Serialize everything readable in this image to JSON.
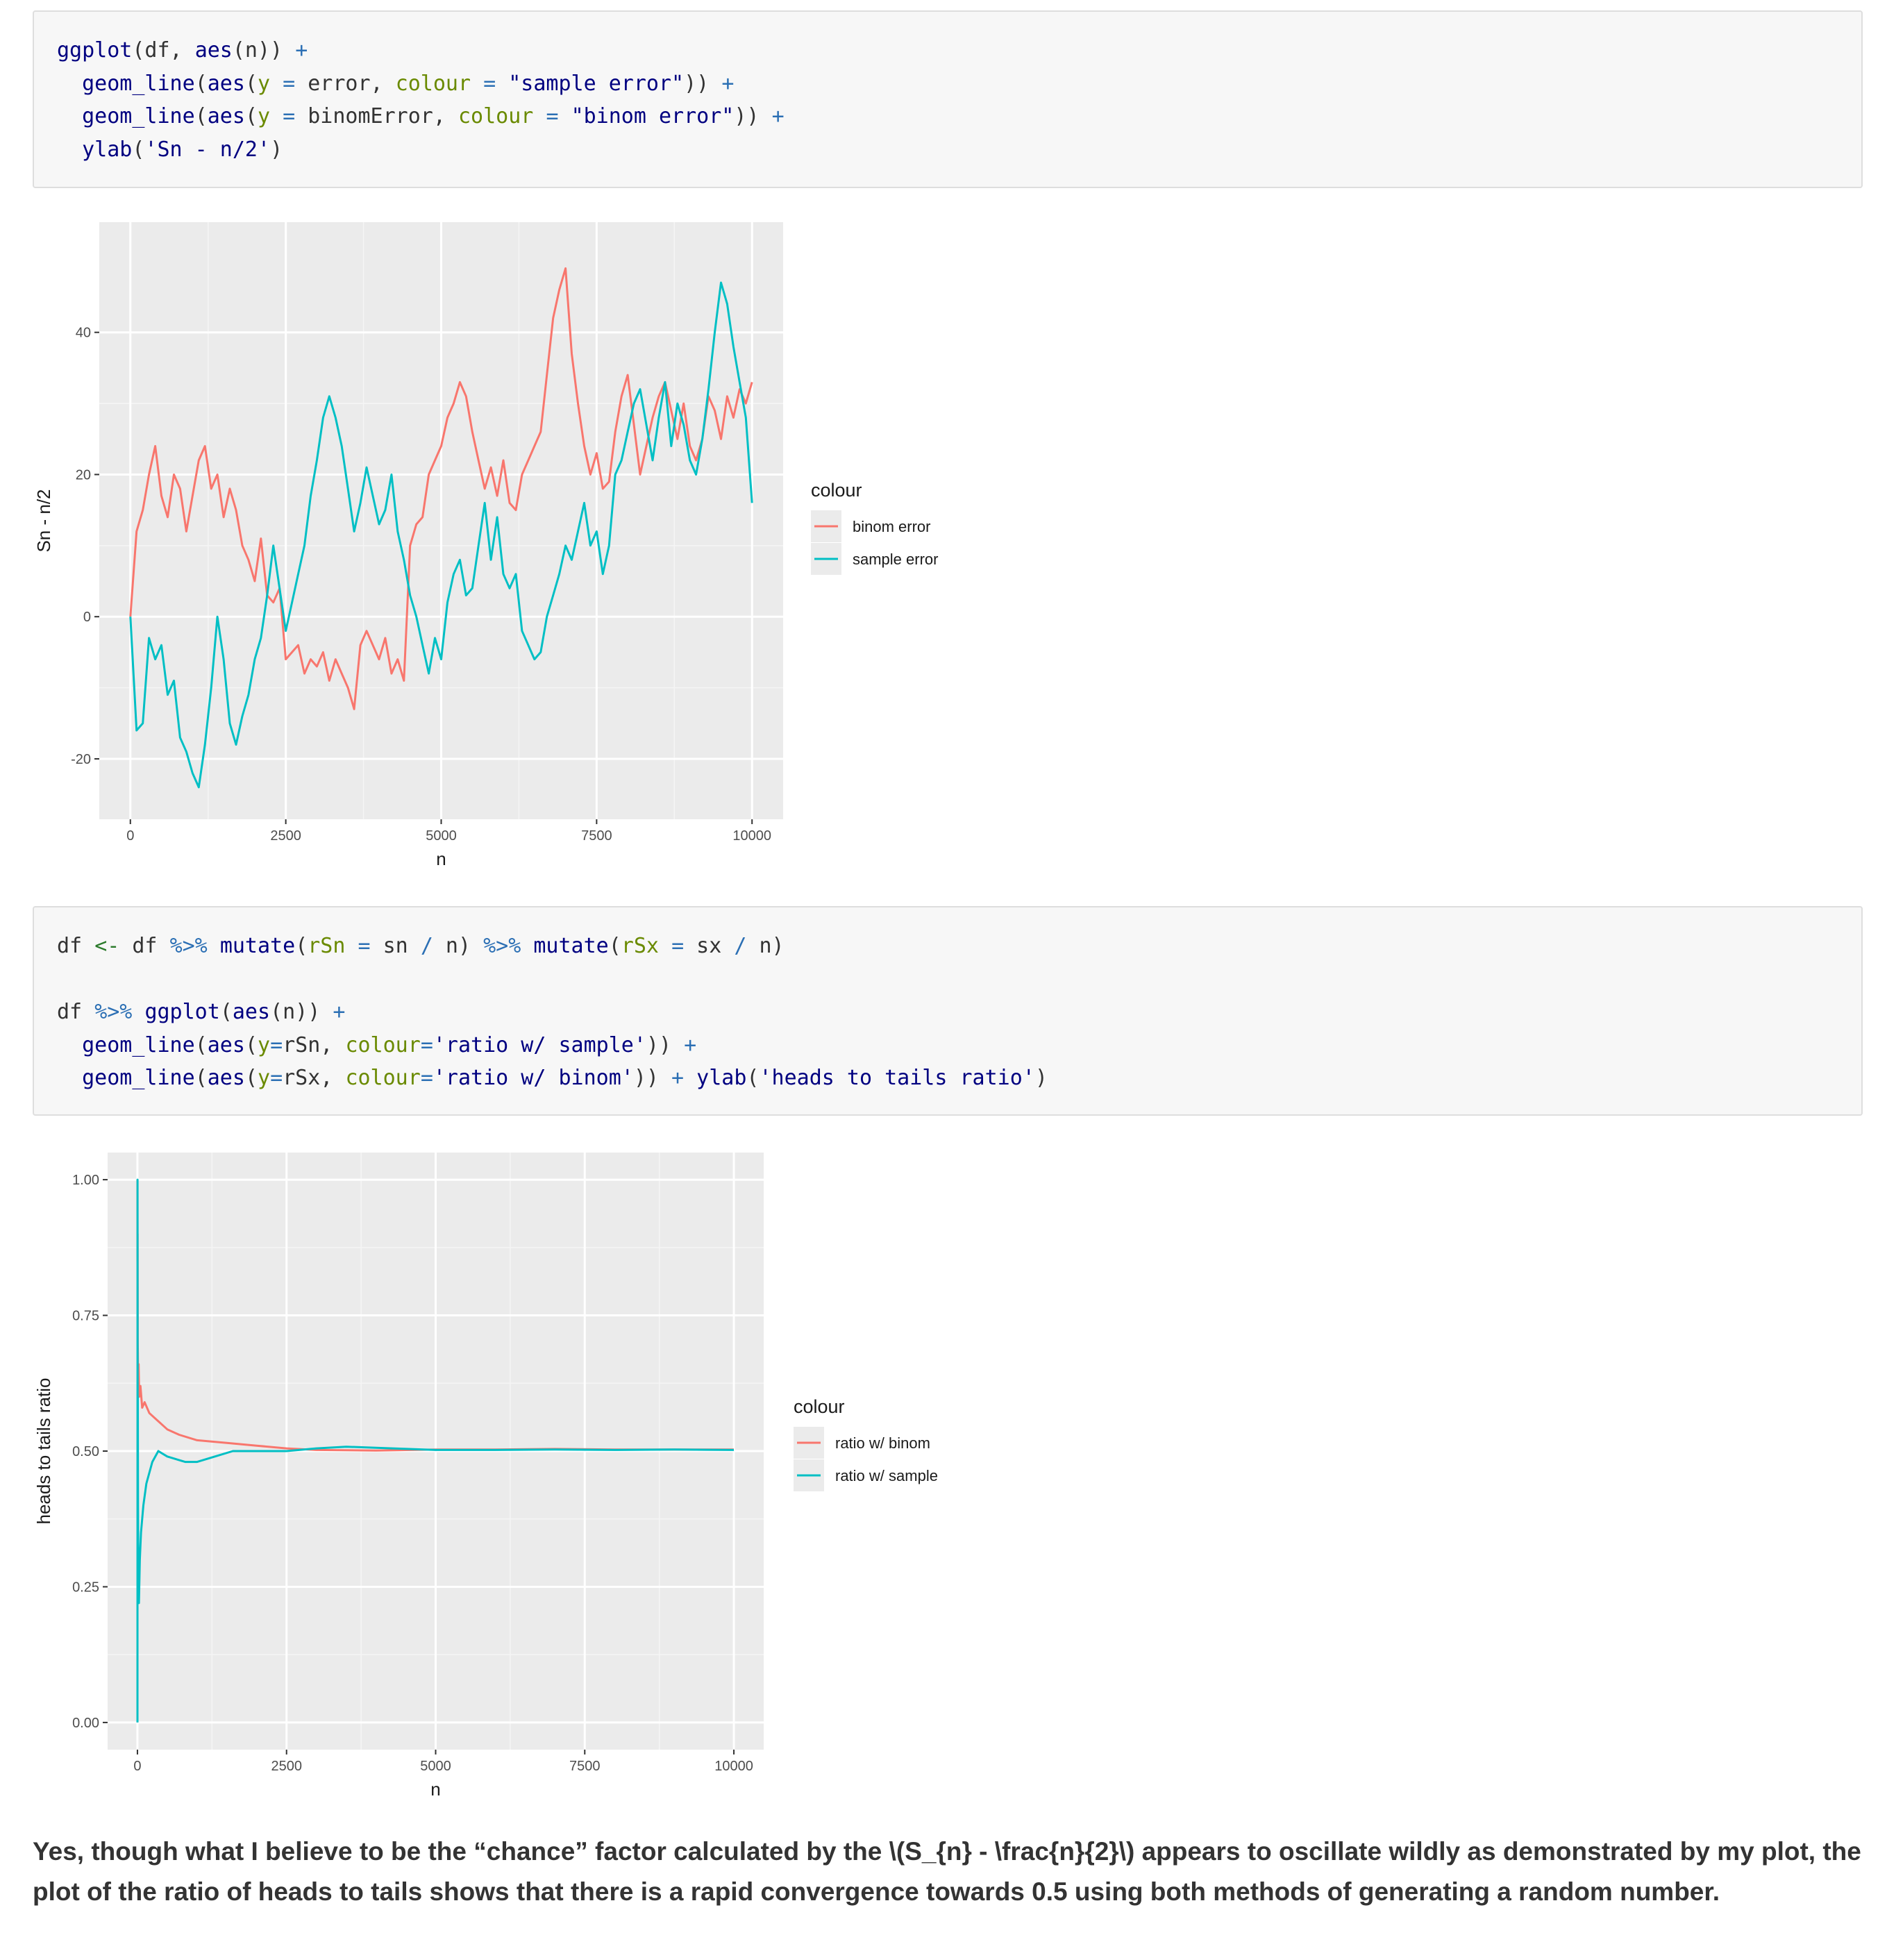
{
  "code_blocks": [
    {
      "lines": [
        [
          [
            "c-fn",
            "ggplot"
          ],
          [
            "c-plain",
            "(df, "
          ],
          [
            "c-fn",
            "aes"
          ],
          [
            "c-plain",
            "(n)) "
          ],
          [
            "c-op",
            "+"
          ]
        ],
        [
          [
            "c-plain",
            "  "
          ],
          [
            "c-fn",
            "geom_line"
          ],
          [
            "c-plain",
            "("
          ],
          [
            "c-fn",
            "aes"
          ],
          [
            "c-plain",
            "("
          ],
          [
            "c-arg",
            "y"
          ],
          [
            "c-plain",
            " "
          ],
          [
            "c-op",
            "="
          ],
          [
            "c-plain",
            " error, "
          ],
          [
            "c-arg",
            "colour"
          ],
          [
            "c-plain",
            " "
          ],
          [
            "c-op",
            "="
          ],
          [
            "c-plain",
            " "
          ],
          [
            "c-str",
            "\"sample error\""
          ],
          [
            "c-plain",
            ")) "
          ],
          [
            "c-op",
            "+"
          ]
        ],
        [
          [
            "c-plain",
            "  "
          ],
          [
            "c-fn",
            "geom_line"
          ],
          [
            "c-plain",
            "("
          ],
          [
            "c-fn",
            "aes"
          ],
          [
            "c-plain",
            "("
          ],
          [
            "c-arg",
            "y"
          ],
          [
            "c-plain",
            " "
          ],
          [
            "c-op",
            "="
          ],
          [
            "c-plain",
            " binomError, "
          ],
          [
            "c-arg",
            "colour"
          ],
          [
            "c-plain",
            " "
          ],
          [
            "c-op",
            "="
          ],
          [
            "c-plain",
            " "
          ],
          [
            "c-str",
            "\"binom error\""
          ],
          [
            "c-plain",
            ")) "
          ],
          [
            "c-op",
            "+"
          ]
        ],
        [
          [
            "c-plain",
            "  "
          ],
          [
            "c-fn",
            "ylab"
          ],
          [
            "c-plain",
            "("
          ],
          [
            "c-str",
            "'Sn - n/2'"
          ],
          [
            "c-plain",
            ")"
          ]
        ]
      ]
    },
    {
      "lines": [
        [
          [
            "c-plain",
            "df "
          ],
          [
            "c-assign",
            "<-"
          ],
          [
            "c-plain",
            " df "
          ],
          [
            "c-op",
            "%>%"
          ],
          [
            "c-plain",
            " "
          ],
          [
            "c-fn",
            "mutate"
          ],
          [
            "c-plain",
            "("
          ],
          [
            "c-arg",
            "rSn"
          ],
          [
            "c-plain",
            " "
          ],
          [
            "c-op",
            "="
          ],
          [
            "c-plain",
            " sn "
          ],
          [
            "c-op",
            "/"
          ],
          [
            "c-plain",
            " n) "
          ],
          [
            "c-op",
            "%>%"
          ],
          [
            "c-plain",
            " "
          ],
          [
            "c-fn",
            "mutate"
          ],
          [
            "c-plain",
            "("
          ],
          [
            "c-arg",
            "rSx"
          ],
          [
            "c-plain",
            " "
          ],
          [
            "c-op",
            "="
          ],
          [
            "c-plain",
            " sx "
          ],
          [
            "c-op",
            "/"
          ],
          [
            "c-plain",
            " n)"
          ]
        ],
        [],
        [
          [
            "c-plain",
            "df "
          ],
          [
            "c-op",
            "%>%"
          ],
          [
            "c-plain",
            " "
          ],
          [
            "c-fn",
            "ggplot"
          ],
          [
            "c-plain",
            "("
          ],
          [
            "c-fn",
            "aes"
          ],
          [
            "c-plain",
            "(n)) "
          ],
          [
            "c-op",
            "+"
          ]
        ],
        [
          [
            "c-plain",
            "  "
          ],
          [
            "c-fn",
            "geom_line"
          ],
          [
            "c-plain",
            "("
          ],
          [
            "c-fn",
            "aes"
          ],
          [
            "c-plain",
            "("
          ],
          [
            "c-arg",
            "y"
          ],
          [
            "c-op",
            "="
          ],
          [
            "c-plain",
            "rSn, "
          ],
          [
            "c-arg",
            "colour"
          ],
          [
            "c-op",
            "="
          ],
          [
            "c-str",
            "'ratio w/ sample'"
          ],
          [
            "c-plain",
            ")) "
          ],
          [
            "c-op",
            "+"
          ]
        ],
        [
          [
            "c-plain",
            "  "
          ],
          [
            "c-fn",
            "geom_line"
          ],
          [
            "c-plain",
            "("
          ],
          [
            "c-fn",
            "aes"
          ],
          [
            "c-plain",
            "("
          ],
          [
            "c-arg",
            "y"
          ],
          [
            "c-op",
            "="
          ],
          [
            "c-plain",
            "rSx, "
          ],
          [
            "c-arg",
            "colour"
          ],
          [
            "c-op",
            "="
          ],
          [
            "c-str",
            "'ratio w/ binom'"
          ],
          [
            "c-plain",
            ")) "
          ],
          [
            "c-op",
            "+"
          ],
          [
            "c-plain",
            " "
          ],
          [
            "c-fn",
            "ylab"
          ],
          [
            "c-plain",
            "("
          ],
          [
            "c-str",
            "'heads to tails ratio'"
          ],
          [
            "c-plain",
            ")"
          ]
        ]
      ]
    }
  ],
  "chart_data": [
    {
      "type": "line",
      "title": "",
      "xlabel": "n",
      "ylabel": "Sn - n/2",
      "xlim": [
        -500,
        10500
      ],
      "ylim": [
        -28.5,
        55.5
      ],
      "xticks": [
        0,
        2500,
        5000,
        7500,
        10000
      ],
      "xtick_labels": [
        "0",
        "2500",
        "5000",
        "7500",
        "10000"
      ],
      "yticks": [
        -20,
        0,
        20,
        40
      ],
      "ytick_labels": [
        "-20",
        "0",
        "20",
        "40"
      ],
      "grid": true,
      "legend": {
        "title": "colour",
        "position": "right",
        "entries": [
          "binom error",
          "sample error"
        ]
      },
      "colors": {
        "binom error": "#F8766D",
        "sample error": "#00BFC4"
      },
      "series": [
        {
          "name": "binom error",
          "x": [
            0,
            100,
            200,
            300,
            400,
            500,
            600,
            700,
            800,
            900,
            1000,
            1100,
            1200,
            1300,
            1400,
            1500,
            1600,
            1700,
            1800,
            1900,
            2000,
            2100,
            2200,
            2300,
            2400,
            2500,
            2600,
            2700,
            2800,
            2900,
            3000,
            3100,
            3200,
            3300,
            3400,
            3500,
            3600,
            3700,
            3800,
            3900,
            4000,
            4100,
            4200,
            4300,
            4400,
            4500,
            4600,
            4700,
            4800,
            4900,
            5000,
            5100,
            5200,
            5300,
            5400,
            5500,
            5600,
            5700,
            5800,
            5900,
            6000,
            6100,
            6200,
            6300,
            6400,
            6500,
            6600,
            6700,
            6800,
            6900,
            7000,
            7100,
            7200,
            7300,
            7400,
            7500,
            7600,
            7700,
            7800,
            7900,
            8000,
            8100,
            8200,
            8300,
            8400,
            8500,
            8600,
            8700,
            8800,
            8900,
            9000,
            9100,
            9200,
            9300,
            9400,
            9500,
            9600,
            9700,
            9800,
            9900,
            10000
          ],
          "y": [
            0,
            12,
            15,
            20,
            24,
            17,
            14,
            20,
            18,
            12,
            17,
            22,
            24,
            18,
            20,
            14,
            18,
            15,
            10,
            8,
            5,
            11,
            3,
            2,
            4,
            -6,
            -5,
            -4,
            -8,
            -6,
            -7,
            -5,
            -9,
            -6,
            -8,
            -10,
            -13,
            -4,
            -2,
            -4,
            -6,
            -3,
            -8,
            -6,
            -9,
            10,
            13,
            14,
            20,
            22,
            24,
            28,
            30,
            33,
            31,
            26,
            22,
            18,
            21,
            17,
            22,
            16,
            15,
            20,
            22,
            24,
            26,
            34,
            42,
            46,
            49,
            37,
            30,
            24,
            20,
            23,
            18,
            19,
            26,
            31,
            34,
            27,
            20,
            24,
            28,
            31,
            33,
            29,
            25,
            30,
            24,
            22,
            25,
            31,
            29,
            25,
            31,
            28,
            32,
            30,
            33
          ]
        },
        {
          "name": "sample error",
          "x": [
            0,
            100,
            200,
            300,
            400,
            500,
            600,
            700,
            800,
            900,
            1000,
            1100,
            1200,
            1300,
            1400,
            1500,
            1600,
            1700,
            1800,
            1900,
            2000,
            2100,
            2200,
            2300,
            2400,
            2500,
            2600,
            2700,
            2800,
            2900,
            3000,
            3100,
            3200,
            3300,
            3400,
            3500,
            3600,
            3700,
            3800,
            3900,
            4000,
            4100,
            4200,
            4300,
            4400,
            4500,
            4600,
            4700,
            4800,
            4900,
            5000,
            5100,
            5200,
            5300,
            5400,
            5500,
            5600,
            5700,
            5800,
            5900,
            6000,
            6100,
            6200,
            6300,
            6400,
            6500,
            6600,
            6700,
            6800,
            6900,
            7000,
            7100,
            7200,
            7300,
            7400,
            7500,
            7600,
            7700,
            7800,
            7900,
            8000,
            8100,
            8200,
            8300,
            8400,
            8500,
            8600,
            8700,
            8800,
            8900,
            9000,
            9100,
            9200,
            9300,
            9400,
            9500,
            9600,
            9700,
            9800,
            9900,
            10000
          ],
          "y": [
            0,
            -16,
            -15,
            -3,
            -6,
            -4,
            -11,
            -9,
            -17,
            -19,
            -22,
            -24,
            -18,
            -10,
            0,
            -6,
            -15,
            -18,
            -14,
            -11,
            -6,
            -3,
            3,
            10,
            4,
            -2,
            2,
            6,
            10,
            17,
            22,
            28,
            31,
            28,
            24,
            18,
            12,
            16,
            21,
            17,
            13,
            15,
            20,
            12,
            8,
            3,
            0,
            -4,
            -8,
            -3,
            -6,
            2,
            6,
            8,
            3,
            4,
            10,
            16,
            8,
            14,
            6,
            4,
            6,
            -2,
            -4,
            -6,
            -5,
            0,
            3,
            6,
            10,
            8,
            12,
            16,
            10,
            12,
            6,
            10,
            20,
            22,
            26,
            30,
            32,
            27,
            22,
            28,
            33,
            24,
            30,
            27,
            22,
            20,
            25,
            32,
            40,
            47,
            44,
            38,
            33,
            28,
            16
          ]
        }
      ]
    },
    {
      "type": "line",
      "title": "",
      "xlabel": "n",
      "ylabel": "heads to tails ratio",
      "xlim": [
        -500,
        10500
      ],
      "ylim": [
        -0.05,
        1.05
      ],
      "xticks": [
        0,
        2500,
        5000,
        7500,
        10000
      ],
      "xtick_labels": [
        "0",
        "2500",
        "5000",
        "7500",
        "10000"
      ],
      "yticks": [
        0,
        0.25,
        0.5,
        0.75,
        1.0
      ],
      "ytick_labels": [
        "0.00",
        "0.25",
        "0.50",
        "0.75",
        "1.00"
      ],
      "grid": true,
      "legend": {
        "title": "colour",
        "position": "right",
        "entries": [
          "ratio w/ binom",
          "ratio w/ sample"
        ]
      },
      "colors": {
        "ratio w/ binom": "#F8766D",
        "ratio w/ sample": "#00BFC4"
      },
      "series": [
        {
          "name": "ratio w/ binom",
          "x": [
            1,
            2,
            3,
            5,
            8,
            12,
            20,
            30,
            50,
            80,
            120,
            200,
            300,
            500,
            700,
            1000,
            1500,
            2000,
            2500,
            3000,
            4000,
            5000,
            6000,
            7000,
            8000,
            9000,
            10000
          ],
          "y": [
            1.0,
            0.85,
            0.9,
            0.7,
            0.68,
            0.62,
            0.66,
            0.6,
            0.62,
            0.58,
            0.59,
            0.57,
            0.56,
            0.54,
            0.53,
            0.52,
            0.515,
            0.51,
            0.505,
            0.502,
            0.501,
            0.503,
            0.503,
            0.504,
            0.503,
            0.503,
            0.503
          ]
        },
        {
          "name": "ratio w/ sample",
          "x": [
            1,
            2,
            4,
            6,
            10,
            15,
            25,
            40,
            60,
            100,
            150,
            250,
            350,
            500,
            800,
            1000,
            1300,
            1600,
            2000,
            2500,
            3000,
            3500,
            4000,
            5000,
            6000,
            7000,
            8000,
            9000,
            10000
          ],
          "y": [
            0.0,
            1.0,
            0.5,
            0.6,
            0.4,
            0.3,
            0.22,
            0.3,
            0.35,
            0.4,
            0.44,
            0.48,
            0.5,
            0.49,
            0.48,
            0.48,
            0.49,
            0.5,
            0.5,
            0.5,
            0.505,
            0.508,
            0.506,
            0.502,
            0.502,
            0.503,
            0.502,
            0.503,
            0.502
          ]
        }
      ]
    }
  ],
  "conclusion": "Yes, though what I believe to be the “chance” factor calculated by the \\(S_{n} - \\frac{n}{2}\\) appears to oscillate wildly as demonstrated by my plot, the plot of the ratio of heads to tails shows that there is a rapid convergence towards 0.5 using both methods of generating a random number."
}
